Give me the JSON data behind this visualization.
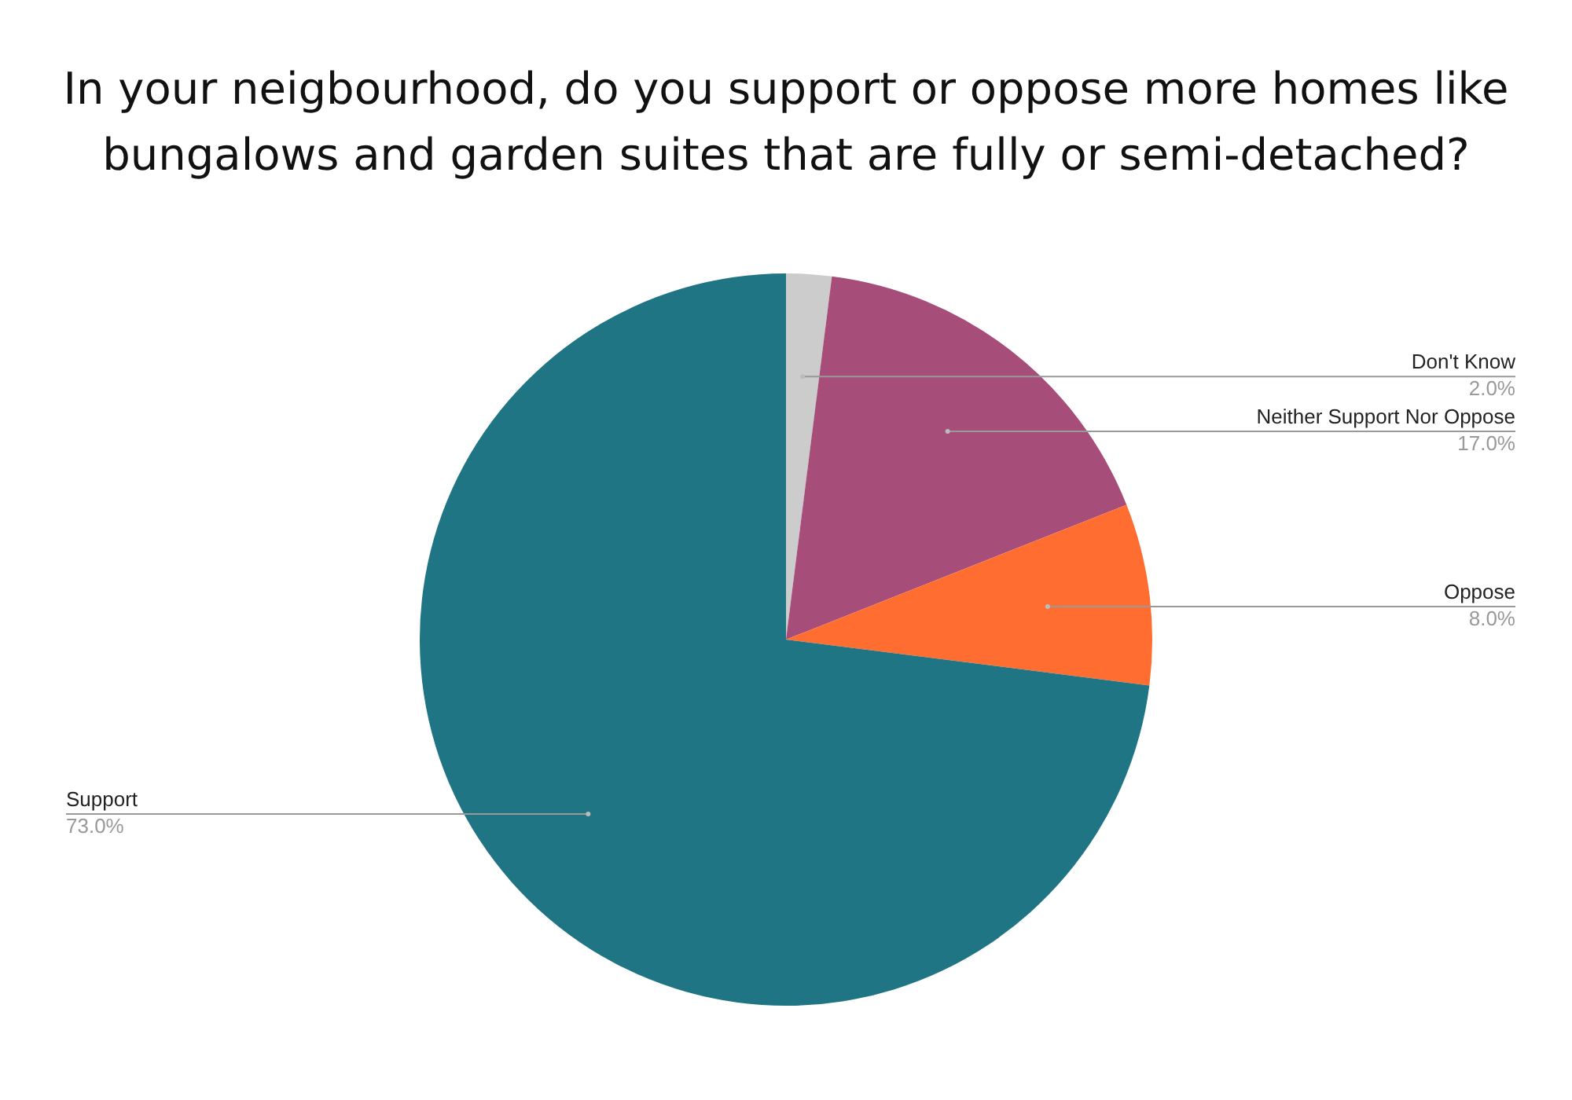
{
  "chart_data": {
    "type": "pie",
    "title": "In your neigbourhood, do you support or oppose more homes like bungalows and garden suites that are fully or semi-detached?",
    "categories": [
      "Don't Know",
      "Neither Support Nor Oppose",
      "Oppose",
      "Support"
    ],
    "values": [
      2,
      17,
      8,
      73
    ],
    "colors": [
      "#cccccc",
      "#a64d79",
      "#ff6d31",
      "#1f7583"
    ],
    "value_labels": [
      "2.0%",
      "17.0%",
      "8.0%",
      "73.0%"
    ],
    "legend": false
  }
}
